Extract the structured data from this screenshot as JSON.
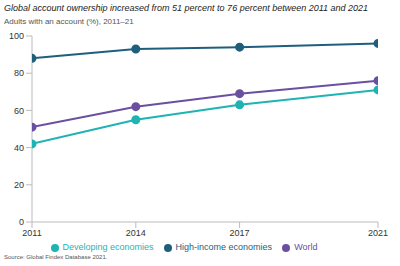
{
  "chart_data": {
    "type": "line",
    "title": "Global account ownership increased from 51 percent to 76 percent between 2011 and 2021",
    "subtitle": "Adults with an account (%), 2011–21",
    "source": "Source: Global Findex Database 2021.",
    "x": [
      2011,
      2014,
      2017,
      2021
    ],
    "xlim": [
      2011,
      2021
    ],
    "xticks": [
      2011,
      2014,
      2017,
      2021
    ],
    "ylim": [
      0,
      100
    ],
    "yticks": [
      0,
      20,
      40,
      60,
      80,
      100
    ],
    "grid": false,
    "legend": "bottom",
    "marker": "circle",
    "series": [
      {
        "name": "World",
        "color": "#6b4fa1",
        "values": [
          51,
          62,
          69,
          76
        ]
      },
      {
        "name": "High-income economies",
        "color": "#1f5f7d",
        "values": [
          88,
          93,
          94,
          96
        ]
      },
      {
        "name": "Developing economies",
        "color": "#1fb3b3",
        "values": [
          42,
          55,
          63,
          71
        ]
      }
    ]
  }
}
